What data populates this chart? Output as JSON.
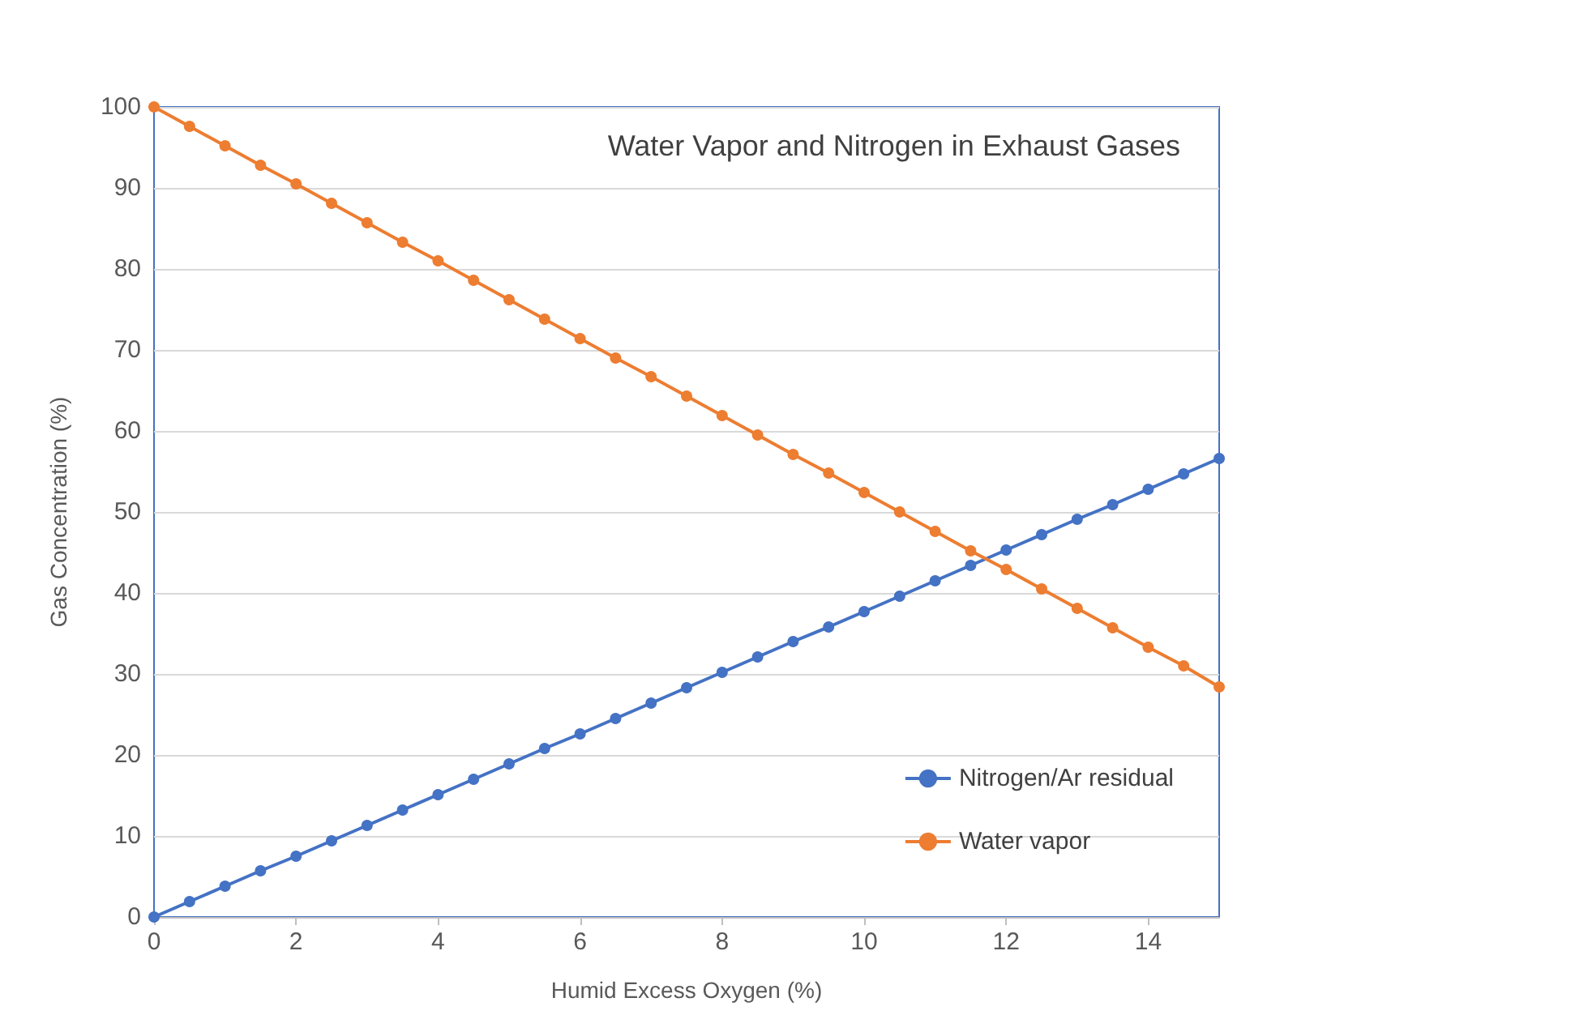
{
  "chart_data": {
    "type": "line",
    "title": "Water Vapor and Nitrogen in Exhaust Gases",
    "xlabel": "Humid Excess Oxygen (%)",
    "ylabel": "Gas Concentration (%)",
    "x": [
      0,
      0.5,
      1,
      1.5,
      2,
      2.5,
      3,
      3.5,
      4,
      4.5,
      5,
      5.5,
      6,
      6.5,
      7,
      7.5,
      8,
      8.5,
      9,
      9.5,
      10,
      10.5,
      11,
      11.5,
      12,
      12.5,
      13,
      13.5,
      14,
      14.5,
      15
    ],
    "series": [
      {
        "name": "Nitrogen/Ar residual",
        "color": "#4472c4",
        "values": [
          0,
          1.9,
          3.8,
          5.7,
          7.5,
          9.4,
          11.3,
          13.2,
          15.1,
          17,
          18.9,
          20.8,
          22.6,
          24.5,
          26.4,
          28.3,
          30.2,
          32.1,
          34,
          35.8,
          37.7,
          39.6,
          41.5,
          43.4,
          45.3,
          47.2,
          49.1,
          50.9,
          52.8,
          54.7,
          56.6
        ]
      },
      {
        "name": "Water vapor",
        "color": "#ed7d31",
        "values": [
          100,
          97.6,
          95.2,
          92.8,
          90.5,
          88.1,
          85.7,
          83.3,
          81,
          78.6,
          76.2,
          73.8,
          71.4,
          69,
          66.7,
          64.3,
          61.9,
          59.5,
          57.1,
          54.8,
          52.4,
          50,
          47.6,
          45.2,
          42.9,
          40.5,
          38.1,
          35.7,
          33.3,
          31,
          28.4
        ]
      }
    ],
    "xlim": [
      0,
      15
    ],
    "xticks": [
      0,
      2,
      4,
      6,
      8,
      10,
      12,
      14
    ],
    "ylim": [
      0,
      100
    ],
    "yticks": [
      0,
      10,
      20,
      30,
      40,
      50,
      60,
      70,
      80,
      90,
      100
    ],
    "grid": "y",
    "legend": "bottom right",
    "marker": "circle",
    "line_style": "solid"
  }
}
